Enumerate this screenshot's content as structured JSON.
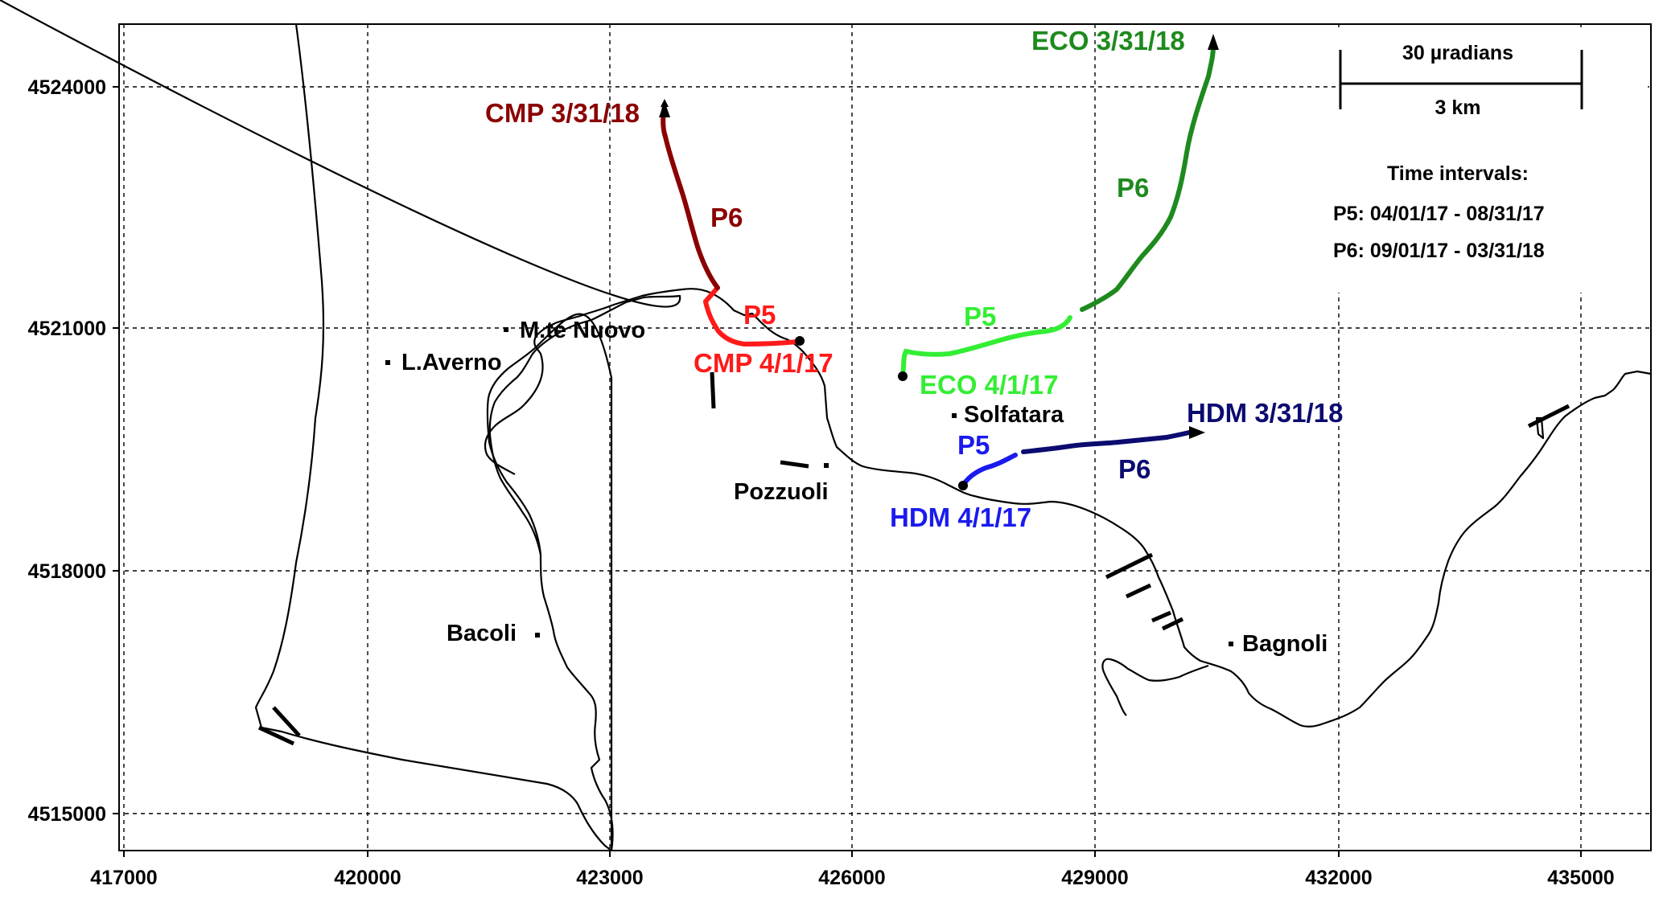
{
  "map": {
    "x_ticks": [
      "417000",
      "420000",
      "423000",
      "426000",
      "429000",
      "432000",
      "435000"
    ],
    "y_ticks": [
      "4524000",
      "4521000",
      "4518000",
      "4515000"
    ],
    "places": [
      {
        "id": "monte-nuovo",
        "label": "M.te Nuovo"
      },
      {
        "id": "averno",
        "label": "L.Averno"
      },
      {
        "id": "solfatara",
        "label": "Solfatara"
      },
      {
        "id": "pozzuoli",
        "label": "Pozzuoli"
      },
      {
        "id": "bacoli",
        "label": "Bacoli"
      },
      {
        "id": "bagnoli",
        "label": "Bagnoli"
      }
    ]
  },
  "stations": {
    "cmp": {
      "start_label": "CMP 4/1/17",
      "end_label": "CMP 3/31/18",
      "p5_label": "P5",
      "p6_label": "P6",
      "p5_color": "#ff1a1a",
      "p6_color": "#8b0000"
    },
    "eco": {
      "start_label": "ECO 4/1/17",
      "end_label": "ECO 3/31/18",
      "p5_label": "P5",
      "p6_label": "P6",
      "p5_color": "#33ee33",
      "p6_color": "#1e8a1e"
    },
    "hdm": {
      "start_label": "HDM 4/1/17",
      "end_label": "HDM 3/31/18",
      "p5_label": "P5",
      "p6_label": "P6",
      "p5_color": "#1a1aee",
      "p6_color": "#0b0b70"
    }
  },
  "legend": {
    "scale_tilt": "30 µradians",
    "scale_distance": "3 km",
    "intervals_title": "Time  intervals:",
    "p5_interval": "P5:  04/01/17 - 08/31/17",
    "p6_interval": "P6:  09/01/17 - 03/31/18"
  }
}
